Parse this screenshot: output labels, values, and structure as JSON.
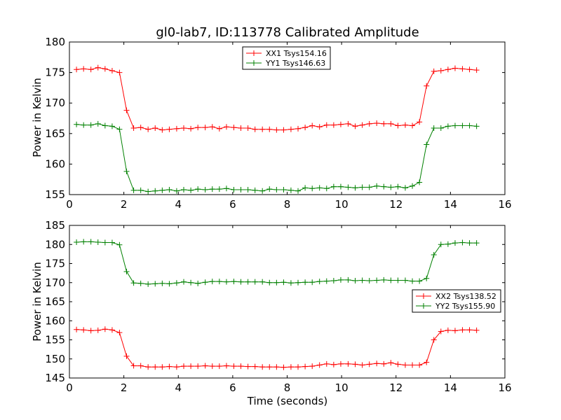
{
  "chart_data": [
    {
      "type": "line",
      "title": "gl0-lab7, ID:113778 Calibrated Amplitude",
      "xlabel": "",
      "ylabel": "Power in Kelvin",
      "xlim": [
        0,
        16
      ],
      "ylim": [
        155,
        180
      ],
      "xticks": [
        "0",
        "2",
        "4",
        "6",
        "8",
        "10",
        "12",
        "14",
        "16"
      ],
      "yticks": [
        "155",
        "160",
        "165",
        "170",
        "175",
        "180"
      ],
      "grid": false,
      "legend_position": "top-center",
      "x": [
        0.26,
        0.52,
        0.79,
        1.05,
        1.31,
        1.57,
        1.84,
        2.1,
        2.36,
        2.62,
        2.89,
        3.15,
        3.41,
        3.67,
        3.94,
        4.2,
        4.46,
        4.72,
        4.99,
        5.25,
        5.51,
        5.77,
        6.04,
        6.3,
        6.56,
        6.82,
        7.09,
        7.35,
        7.61,
        7.87,
        8.14,
        8.4,
        8.66,
        8.92,
        9.19,
        9.45,
        9.71,
        9.97,
        10.24,
        10.5,
        10.76,
        11.02,
        11.29,
        11.55,
        11.81,
        12.07,
        12.34,
        12.6,
        12.86,
        13.12,
        13.39,
        13.65,
        13.91,
        14.17,
        14.44,
        14.7,
        14.96
      ],
      "series": [
        {
          "name": "XX1 Tsys154.16",
          "color": "#ff0000",
          "values": [
            175.5,
            175.6,
            175.5,
            175.8,
            175.6,
            175.3,
            175.0,
            168.8,
            165.9,
            166.0,
            165.7,
            165.9,
            165.6,
            165.7,
            165.8,
            165.9,
            165.8,
            166.0,
            166.0,
            166.1,
            165.8,
            166.1,
            166.0,
            165.9,
            165.9,
            165.7,
            165.7,
            165.7,
            165.6,
            165.6,
            165.7,
            165.8,
            166.0,
            166.3,
            166.1,
            166.4,
            166.4,
            166.5,
            166.6,
            166.2,
            166.4,
            166.6,
            166.7,
            166.6,
            166.6,
            166.3,
            166.4,
            166.3,
            166.9,
            172.8,
            175.2,
            175.3,
            175.5,
            175.7,
            175.6,
            175.5,
            175.4
          ]
        },
        {
          "name": "YY1 Tsys146.63",
          "color": "#008000",
          "values": [
            166.5,
            166.4,
            166.4,
            166.6,
            166.3,
            166.2,
            165.7,
            158.8,
            155.7,
            155.7,
            155.5,
            155.6,
            155.7,
            155.8,
            155.6,
            155.8,
            155.7,
            155.9,
            155.8,
            155.9,
            155.9,
            156.0,
            155.8,
            155.8,
            155.8,
            155.7,
            155.6,
            155.9,
            155.8,
            155.8,
            155.7,
            155.6,
            156.1,
            156.0,
            156.1,
            156.0,
            156.3,
            156.3,
            156.2,
            156.1,
            156.2,
            156.2,
            156.4,
            156.3,
            156.2,
            156.3,
            156.1,
            156.4,
            157.0,
            163.2,
            165.9,
            165.9,
            166.2,
            166.3,
            166.3,
            166.3,
            166.2
          ]
        }
      ]
    },
    {
      "type": "line",
      "title": "",
      "xlabel": "Time (seconds)",
      "ylabel": "Power in Kelvin",
      "xlim": [
        0,
        16
      ],
      "ylim": [
        145,
        185
      ],
      "xticks": [
        "0",
        "2",
        "4",
        "6",
        "8",
        "10",
        "12",
        "14",
        "16"
      ],
      "yticks": [
        "145",
        "150",
        "155",
        "160",
        "165",
        "170",
        "175",
        "180",
        "185"
      ],
      "grid": false,
      "legend_position": "center-right",
      "x": [
        0.26,
        0.52,
        0.79,
        1.05,
        1.31,
        1.57,
        1.84,
        2.1,
        2.36,
        2.62,
        2.89,
        3.15,
        3.41,
        3.67,
        3.94,
        4.2,
        4.46,
        4.72,
        4.99,
        5.25,
        5.51,
        5.77,
        6.04,
        6.3,
        6.56,
        6.82,
        7.09,
        7.35,
        7.61,
        7.87,
        8.14,
        8.4,
        8.66,
        8.92,
        9.19,
        9.45,
        9.71,
        9.97,
        10.24,
        10.5,
        10.76,
        11.02,
        11.29,
        11.55,
        11.81,
        12.07,
        12.34,
        12.6,
        12.86,
        13.12,
        13.39,
        13.65,
        13.91,
        14.17,
        14.44,
        14.7,
        14.96
      ],
      "series": [
        {
          "name": "XX2 Tsys138.52",
          "color": "#ff0000",
          "values": [
            157.7,
            157.6,
            157.4,
            157.5,
            157.8,
            157.6,
            156.9,
            150.7,
            148.2,
            148.2,
            147.9,
            147.9,
            147.9,
            148.0,
            147.9,
            148.1,
            148.1,
            148.1,
            148.2,
            148.1,
            148.1,
            148.2,
            148.1,
            148.1,
            148.0,
            148.0,
            147.9,
            147.9,
            147.9,
            147.8,
            147.9,
            147.9,
            148.0,
            148.1,
            148.4,
            148.7,
            148.5,
            148.7,
            148.7,
            148.6,
            148.4,
            148.6,
            148.8,
            148.7,
            149.0,
            148.6,
            148.4,
            148.4,
            148.4,
            149.1,
            155.0,
            157.2,
            157.5,
            157.4,
            157.6,
            157.6,
            157.5
          ]
        },
        {
          "name": "YY2 Tsys155.90",
          "color": "#008000",
          "values": [
            180.6,
            180.7,
            180.7,
            180.6,
            180.5,
            180.5,
            179.9,
            172.9,
            169.9,
            169.8,
            169.6,
            169.7,
            169.8,
            169.7,
            169.9,
            170.2,
            170.0,
            169.8,
            170.1,
            170.3,
            170.3,
            170.2,
            170.3,
            170.2,
            170.2,
            170.2,
            170.2,
            170.0,
            170.0,
            170.1,
            169.9,
            170.0,
            170.1,
            170.1,
            170.3,
            170.4,
            170.5,
            170.7,
            170.7,
            170.5,
            170.6,
            170.5,
            170.6,
            170.7,
            170.6,
            170.6,
            170.6,
            170.4,
            170.4,
            171.1,
            177.3,
            180.0,
            180.1,
            180.4,
            180.5,
            180.4,
            180.4
          ]
        }
      ]
    }
  ]
}
